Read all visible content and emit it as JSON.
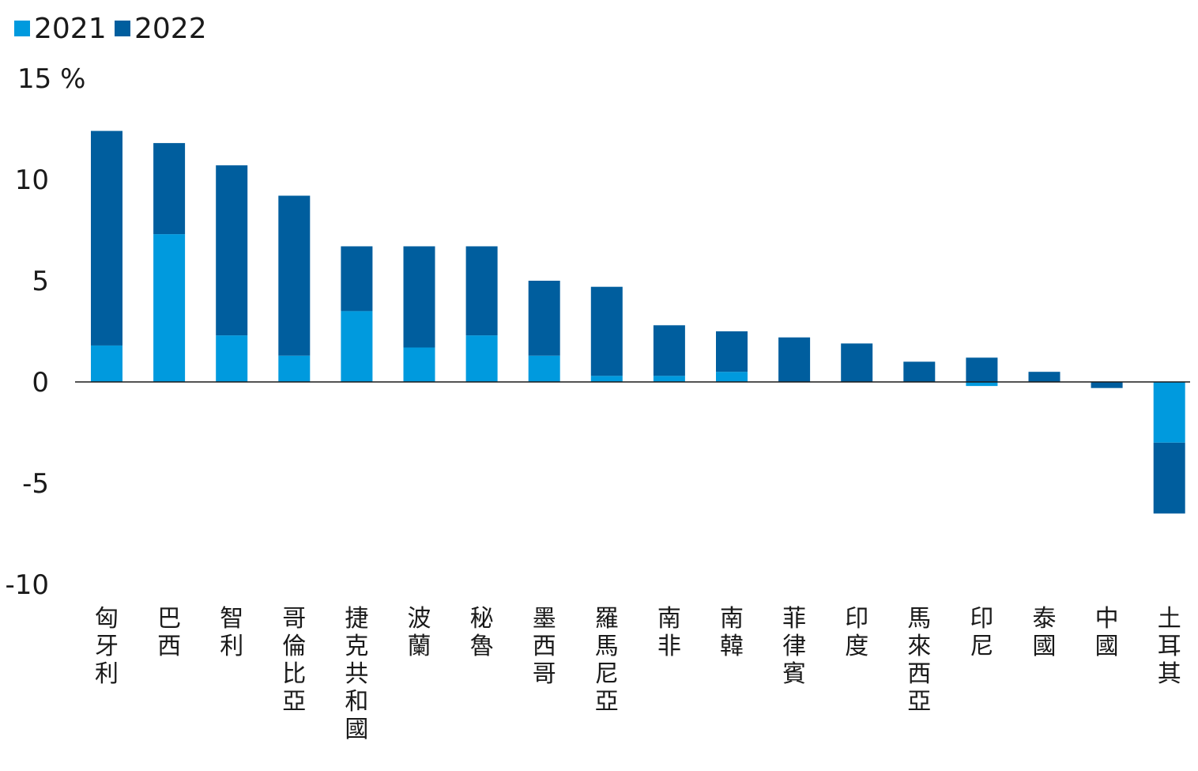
{
  "chart_data": {
    "type": "bar",
    "stacked": true,
    "unit": "%",
    "categories": [
      "匈牙利",
      "巴西",
      "智利",
      "哥倫比亞",
      "捷克共和國",
      "波蘭",
      "秘魯",
      "墨西哥",
      "羅馬尼亞",
      "南非",
      "南韓",
      "菲律賓",
      "印度",
      "馬來西亞",
      "印尼",
      "泰國",
      "中國",
      "土耳其"
    ],
    "series": [
      {
        "name": "2021",
        "color": "#009ADE",
        "values": [
          1.8,
          7.3,
          2.3,
          1.3,
          3.5,
          1.7,
          2.3,
          1.3,
          0.3,
          0.3,
          0.5,
          0.0,
          0.0,
          0.0,
          -0.2,
          0.0,
          0.0,
          -3.0
        ]
      },
      {
        "name": "2022",
        "color": "#005E9E",
        "values": [
          10.6,
          4.5,
          8.4,
          7.9,
          3.2,
          5.0,
          4.4,
          3.7,
          4.4,
          2.5,
          2.0,
          2.2,
          1.9,
          1.0,
          1.2,
          0.5,
          -0.3,
          -3.5
        ]
      }
    ],
    "yticks": [
      15,
      10,
      5,
      0,
      -5,
      -10
    ],
    "ytick_labels": [
      "15 %",
      "10",
      "5",
      "0",
      "-5",
      "-10"
    ],
    "ylim": [
      -10,
      15
    ],
    "legend_position": "top-left",
    "grid": false
  }
}
